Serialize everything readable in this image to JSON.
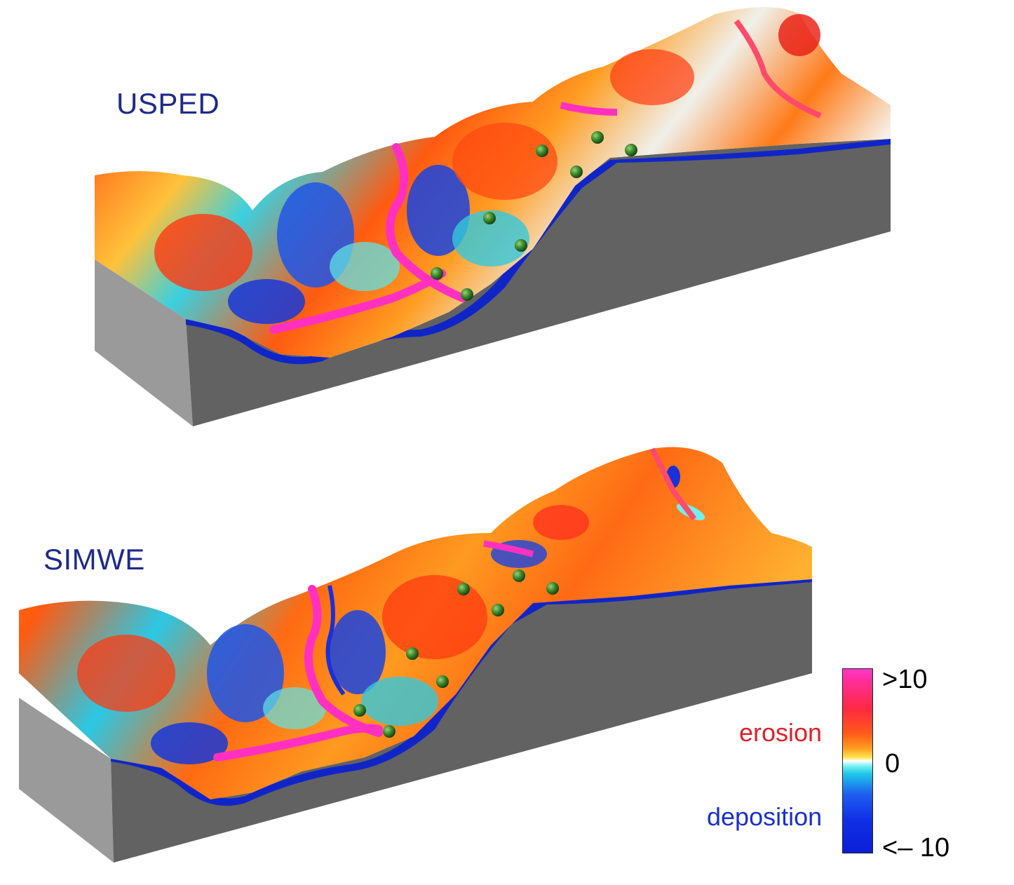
{
  "panels": {
    "top_label": "USPED",
    "bottom_label": "SIMWE"
  },
  "legend": {
    "max_label": ">10",
    "zero_label": "0",
    "min_label": "<– 10",
    "erosion_label": "erosion",
    "deposition_label": "deposition",
    "colors": {
      "high": "#ff39c8",
      "erosion": "#ff2840",
      "neutral": "#ffffff",
      "low": "#6ff0f0",
      "deposition": "#0a1ed8"
    }
  }
}
